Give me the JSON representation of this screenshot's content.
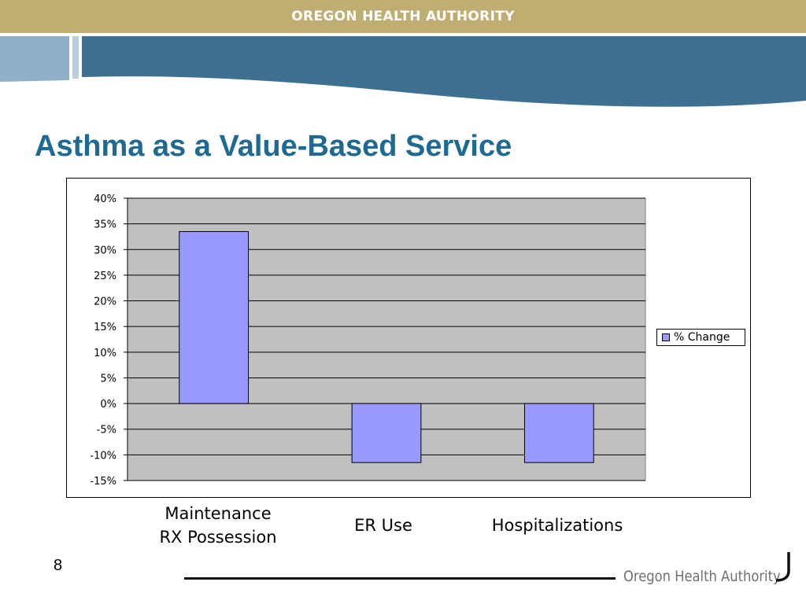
{
  "header": {
    "org_name": "OREGON HEALTH AUTHORITY"
  },
  "slide": {
    "title": "Asthma as a Value-Based Service",
    "page_number": "8"
  },
  "footer": {
    "logo_text": "Oregon Health Authority"
  },
  "colors": {
    "header_bar": "#bfad72",
    "banner_light": "#8fb0c8",
    "banner_dark": "#3f7092",
    "title": "#1e6a93",
    "bar_fill": "#9999ff",
    "plot_bg": "#c0c0c0"
  },
  "chart_data": {
    "type": "bar",
    "categories": [
      "Maintenance\nRX Possession",
      "ER Use",
      "Hospitalizations"
    ],
    "series": [
      {
        "name": "% Change",
        "values": [
          33.5,
          -11.5,
          -11.5
        ]
      }
    ],
    "y_ticks": [
      "40%",
      "35%",
      "30%",
      "25%",
      "20%",
      "15%",
      "10%",
      "5%",
      "0%",
      "-5%",
      "-10%",
      "-15%"
    ],
    "ylim": [
      -15,
      40
    ],
    "y_step": 5,
    "grid": true,
    "legend_position": "right"
  }
}
